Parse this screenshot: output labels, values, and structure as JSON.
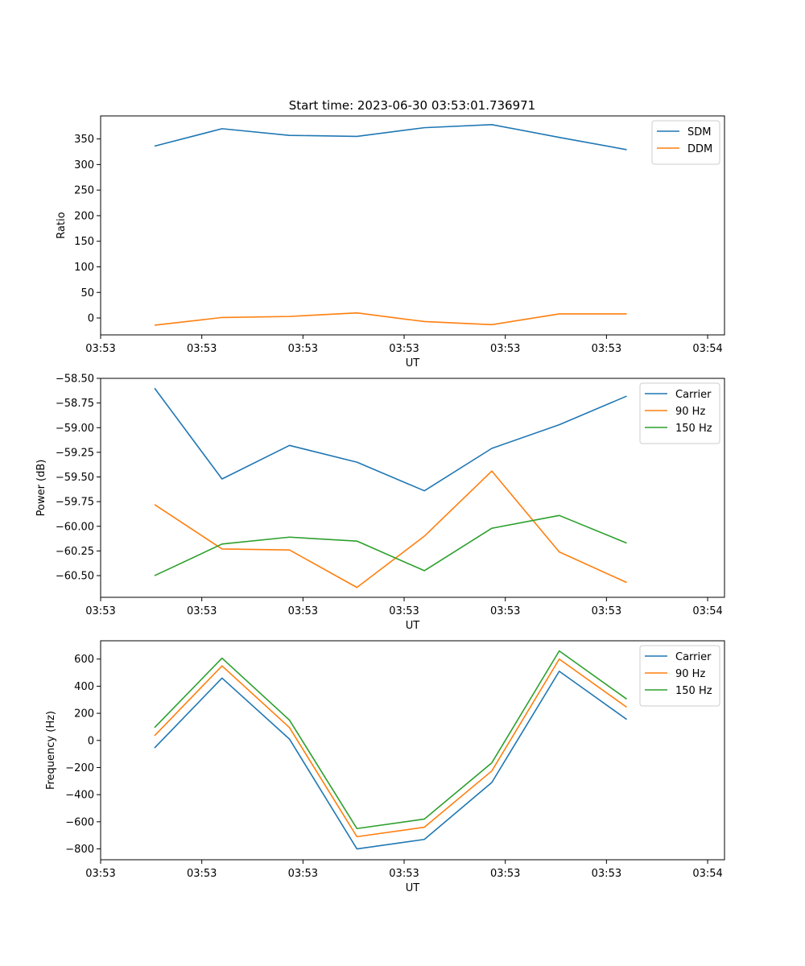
{
  "figure": {
    "title": "Start time: 2023-06-30 03:53:01.736971"
  },
  "colors": {
    "blue": "#1f77b4",
    "orange": "#ff7f0e",
    "green": "#2ca02c"
  },
  "chart_data": [
    {
      "type": "line",
      "title": "Start time: 2023-06-30 03:53:01.736971",
      "xlabel": "UT",
      "ylabel": "Ratio",
      "x_tick_labels": [
        "03:53",
        "03:53",
        "03:53",
        "03:53",
        "03:53",
        "03:53",
        "03:54"
      ],
      "y_ticks": [
        0,
        50,
        100,
        150,
        200,
        250,
        300,
        350
      ],
      "y_tick_labels": [
        "0",
        "50",
        "100",
        "150",
        "200",
        "250",
        "300",
        "350"
      ],
      "ylim": [
        -33,
        395
      ],
      "legend": "top-right",
      "x_index": [
        1,
        2,
        3,
        4,
        5,
        6,
        7,
        8
      ],
      "series": [
        {
          "name": "SDM",
          "color": "#1f77b4",
          "values": [
            336,
            370,
            357,
            355,
            372,
            378,
            353,
            329
          ]
        },
        {
          "name": "DDM",
          "color": "#ff7f0e",
          "values": [
            -14,
            1,
            3,
            10,
            -7,
            -13,
            8,
            8
          ]
        }
      ]
    },
    {
      "type": "line",
      "xlabel": "UT",
      "ylabel": "Power (dB)",
      "x_tick_labels": [
        "03:53",
        "03:53",
        "03:53",
        "03:53",
        "03:53",
        "03:53",
        "03:54"
      ],
      "y_ticks": [
        -58.5,
        -58.75,
        -59.0,
        -59.25,
        -59.5,
        -59.75,
        -60.0,
        -60.25,
        -60.5
      ],
      "y_tick_labels": [
        "−58.50",
        "−58.75",
        "−59.00",
        "−59.25",
        "−59.50",
        "−59.75",
        "−60.00",
        "−60.25",
        "−60.50"
      ],
      "ylim": [
        -60.72,
        -58.5
      ],
      "legend": "top-right",
      "x_index": [
        1,
        2,
        3,
        4,
        5,
        6,
        7,
        8
      ],
      "series": [
        {
          "name": "Carrier",
          "color": "#1f77b4",
          "values": [
            -58.6,
            -59.52,
            -59.18,
            -59.35,
            -59.64,
            -59.21,
            -58.97,
            -58.68
          ]
        },
        {
          "name": "90 Hz",
          "color": "#ff7f0e",
          "values": [
            -59.78,
            -60.23,
            -60.24,
            -60.62,
            -60.1,
            -59.44,
            -60.26,
            -60.57
          ]
        },
        {
          "name": "150 Hz",
          "color": "#2ca02c",
          "values": [
            -60.5,
            -60.18,
            -60.11,
            -60.15,
            -60.45,
            -60.02,
            -59.89,
            -60.17
          ]
        }
      ]
    },
    {
      "type": "line",
      "xlabel": "UT",
      "ylabel": "Frequency (Hz)",
      "x_tick_labels": [
        "03:53",
        "03:53",
        "03:53",
        "03:53",
        "03:53",
        "03:53",
        "03:54"
      ],
      "y_ticks": [
        -800,
        -600,
        -400,
        -200,
        0,
        200,
        400,
        600
      ],
      "y_tick_labels": [
        "−800",
        "−600",
        "−400",
        "−200",
        "0",
        "200",
        "400",
        "600"
      ],
      "ylim": [
        -880,
        735
      ],
      "legend": "top-right",
      "x_index": [
        1,
        2,
        3,
        4,
        5,
        6,
        7,
        8
      ],
      "series": [
        {
          "name": "Carrier",
          "color": "#1f77b4",
          "values": [
            -55,
            460,
            10,
            -800,
            -730,
            -310,
            510,
            155
          ]
        },
        {
          "name": "90 Hz",
          "color": "#ff7f0e",
          "values": [
            35,
            550,
            95,
            -710,
            -640,
            -225,
            600,
            245
          ]
        },
        {
          "name": "150 Hz",
          "color": "#2ca02c",
          "values": [
            95,
            607,
            150,
            -650,
            -580,
            -165,
            660,
            305
          ]
        }
      ]
    }
  ]
}
